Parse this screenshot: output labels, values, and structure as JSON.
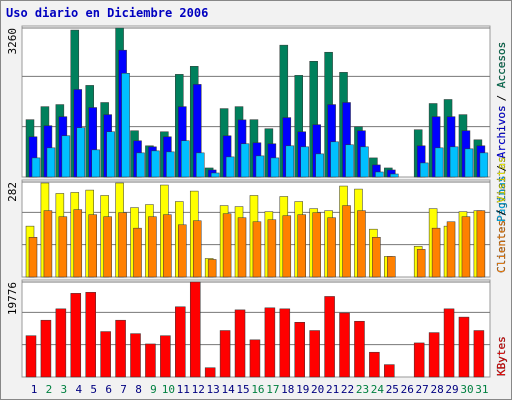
{
  "chart_data": [
    {
      "type": "bar",
      "title": "Uso diario en Diciembre 2006",
      "legend_separator": "/",
      "ylim": [
        0,
        3260
      ],
      "yticks": [
        3260
      ],
      "series": [
        {
          "name": "Accesos",
          "color": "#00805c",
          "values": [
            1255,
            1540,
            1585,
            3215,
            2004,
            1630,
            3260,
            1013,
            683,
            990,
            2246,
            2422,
            198,
            1497,
            1540,
            1255,
            1057,
            2885,
            2224,
            2532,
            2730,
            2290,
            1100,
            418,
            198,
            0,
            1035,
            1608,
            1696,
            1365,
            814
          ]
        },
        {
          "name": "Archivos",
          "color": "#0000ff",
          "values": [
            880,
            1123,
            1320,
            1915,
            1520,
            1365,
            2775,
            793,
            660,
            880,
            1540,
            2026,
            154,
            902,
            1250,
            749,
            727,
            1300,
            990,
            1145,
            1585,
            1630,
            1013,
            264,
            154,
            0,
            683,
            1320,
            1320,
            1013,
            683
          ]
        },
        {
          "name": "Páginas",
          "color": "#00c0ff",
          "values": [
            418,
            638,
            902,
            1079,
            594,
            990,
            2270,
            528,
            572,
            550,
            793,
            528,
            88,
            440,
            727,
            462,
            418,
            682,
            660,
            506,
            770,
            705,
            660,
            110,
            66,
            0,
            308,
            638,
            660,
            616,
            528
          ]
        }
      ]
    },
    {
      "type": "bar",
      "legend_separator": "/",
      "ylim": [
        0,
        282
      ],
      "yticks": [
        282
      ],
      "series": [
        {
          "name": "Visitas",
          "color": "#ffff00",
          "values": [
            151,
            279,
            248,
            251,
            258,
            242,
            279,
            206,
            215,
            273,
            224,
            255,
            55,
            212,
            209,
            242,
            194,
            239,
            224,
            203,
            197,
            270,
            261,
            142,
            61,
            0,
            91,
            203,
            151,
            194,
            197
          ]
        },
        {
          "name": "Clientes",
          "color": "#ff8000",
          "values": [
            118,
            197,
            179,
            200,
            185,
            179,
            191,
            145,
            179,
            185,
            155,
            167,
            52,
            188,
            176,
            164,
            170,
            182,
            185,
            191,
            176,
            212,
            197,
            118,
            61,
            0,
            82,
            145,
            164,
            179,
            197
          ]
        }
      ]
    },
    {
      "type": "bar",
      "ylim": [
        0,
        19776
      ],
      "yticks": [
        19776
      ],
      "categories": [
        "1",
        "2",
        "3",
        "4",
        "5",
        "6",
        "7",
        "8",
        "9",
        "10",
        "11",
        "12",
        "13",
        "14",
        "15",
        "16",
        "17",
        "18",
        "19",
        "20",
        "21",
        "22",
        "23",
        "24",
        "25",
        "26",
        "27",
        "28",
        "29",
        "30",
        "31"
      ],
      "category_colors": [
        "#000080",
        "#008040",
        "#008040",
        "#000080",
        "#000080",
        "#000080",
        "#000080",
        "#000080",
        "#008040",
        "#008040",
        "#000080",
        "#000080",
        "#000080",
        "#000080",
        "#000080",
        "#008040",
        "#008040",
        "#000080",
        "#000080",
        "#000080",
        "#000080",
        "#000080",
        "#008040",
        "#008040",
        "#000080",
        "#000080",
        "#000080",
        "#000080",
        "#000080",
        "#008040",
        "#008040"
      ],
      "series": [
        {
          "name": "KBytes",
          "color": "#ff0000",
          "values": [
            8600,
            11825,
            14190,
            17415,
            17630,
            9460,
            11825,
            9030,
            6880,
            8600,
            14620,
            19776,
            1935,
            9675,
            13975,
            7740,
            14405,
            14190,
            11395,
            9675,
            16770,
            13330,
            11610,
            5160,
            2580,
            0,
            7095,
            9245,
            14190,
            12470,
            9675
          ]
        }
      ]
    }
  ]
}
